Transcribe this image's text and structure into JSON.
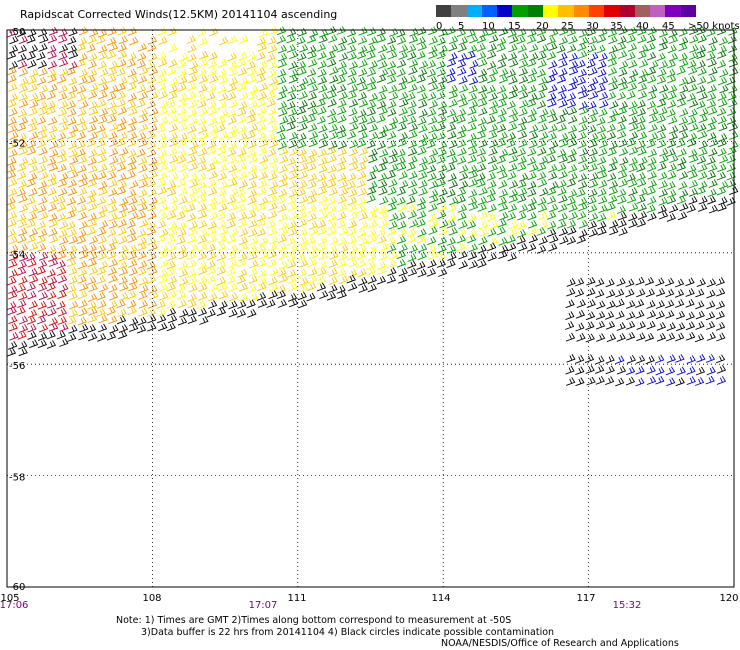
{
  "title": "Rapidscat Corrected Winds(12.5KM) 20141104 ascending",
  "legend": {
    "colors": [
      "#404040",
      "#808080",
      "#00b0ff",
      "#0060ff",
      "#0000c8",
      "#00a000",
      "#008000",
      "#ffff00",
      "#ffc000",
      "#ff8c00",
      "#ff4000",
      "#e00000",
      "#b00030",
      "#a06060",
      "#c060c0",
      "#8000c0",
      "#6000a0"
    ],
    "labels": [
      "0",
      "5",
      "10",
      "15",
      "20",
      "25",
      "30",
      "35",
      "40",
      "45",
      ">50 knots"
    ]
  },
  "axes": {
    "lon_labels": [
      "105",
      "108",
      "111",
      "114",
      "117",
      "120"
    ],
    "lat_labels": [
      "-50",
      "-52",
      "-54",
      "-56",
      "-58",
      "-60"
    ],
    "time_labels": [
      "17:06",
      "17:07",
      "15:32"
    ]
  },
  "notes": {
    "line1": "Note: 1) Times are GMT 2)Times along bottom correspond to measurement at -50S",
    "line2": "3)Data buffer is 22 hrs from 20141104 4) Black circles indicate possible contamination",
    "credit": "NOAA/NESDIS/Office of Research and Applications"
  },
  "wind_colors": {
    "black": "#000000",
    "blue": "#0000e0",
    "green": "#00a000",
    "dark_green": "#007000",
    "yellow": "#ffff00",
    "gold": "#ffc800",
    "orange": "#ff9000",
    "red": "#e00000",
    "crimson": "#c00040"
  }
}
